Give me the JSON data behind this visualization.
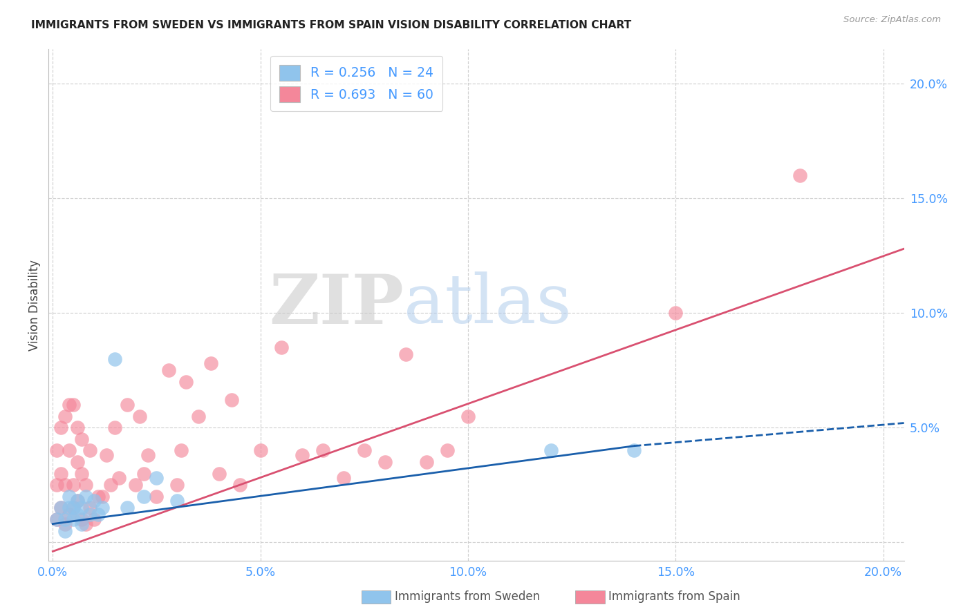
{
  "title": "IMMIGRANTS FROM SWEDEN VS IMMIGRANTS FROM SPAIN VISION DISABILITY CORRELATION CHART",
  "source": "Source: ZipAtlas.com",
  "ylabel": "Vision Disability",
  "xlim": [
    -0.001,
    0.205
  ],
  "ylim": [
    -0.008,
    0.215
  ],
  "x_ticks": [
    0.0,
    0.05,
    0.1,
    0.15,
    0.2
  ],
  "y_ticks": [
    0.0,
    0.05,
    0.1,
    0.15,
    0.2
  ],
  "x_tick_labels": [
    "0.0%",
    "5.0%",
    "10.0%",
    "15.0%",
    "20.0%"
  ],
  "y_tick_labels": [
    "",
    "5.0%",
    "10.0%",
    "15.0%",
    "20.0%"
  ],
  "sweden_color": "#90C4EC",
  "spain_color": "#F4879A",
  "sweden_line_color": "#1A5FAB",
  "spain_line_color": "#D95070",
  "sweden_R": 0.256,
  "sweden_N": 24,
  "spain_R": 0.693,
  "spain_N": 60,
  "legend_label_sweden": "Immigrants from Sweden",
  "legend_label_spain": "Immigrants from Spain",
  "tick_color": "#4499FF",
  "sweden_scatter_x": [
    0.001,
    0.002,
    0.003,
    0.003,
    0.004,
    0.004,
    0.005,
    0.005,
    0.006,
    0.006,
    0.007,
    0.007,
    0.008,
    0.009,
    0.01,
    0.011,
    0.012,
    0.015,
    0.018,
    0.022,
    0.025,
    0.03,
    0.12,
    0.14
  ],
  "sweden_scatter_y": [
    0.01,
    0.015,
    0.01,
    0.005,
    0.015,
    0.02,
    0.01,
    0.015,
    0.012,
    0.018,
    0.015,
    0.008,
    0.02,
    0.012,
    0.018,
    0.012,
    0.015,
    0.08,
    0.015,
    0.02,
    0.028,
    0.018,
    0.04,
    0.04
  ],
  "spain_scatter_x": [
    0.001,
    0.001,
    0.001,
    0.002,
    0.002,
    0.002,
    0.003,
    0.003,
    0.003,
    0.004,
    0.004,
    0.004,
    0.005,
    0.005,
    0.005,
    0.006,
    0.006,
    0.006,
    0.007,
    0.007,
    0.007,
    0.008,
    0.008,
    0.009,
    0.009,
    0.01,
    0.011,
    0.012,
    0.013,
    0.014,
    0.015,
    0.016,
    0.018,
    0.02,
    0.021,
    0.022,
    0.023,
    0.025,
    0.028,
    0.03,
    0.031,
    0.032,
    0.035,
    0.038,
    0.04,
    0.043,
    0.045,
    0.05,
    0.055,
    0.06,
    0.065,
    0.07,
    0.075,
    0.08,
    0.085,
    0.09,
    0.095,
    0.1,
    0.15,
    0.18
  ],
  "spain_scatter_y": [
    0.01,
    0.025,
    0.04,
    0.015,
    0.03,
    0.05,
    0.008,
    0.025,
    0.055,
    0.012,
    0.04,
    0.06,
    0.015,
    0.025,
    0.06,
    0.018,
    0.035,
    0.05,
    0.01,
    0.03,
    0.045,
    0.008,
    0.025,
    0.015,
    0.04,
    0.01,
    0.02,
    0.02,
    0.038,
    0.025,
    0.05,
    0.028,
    0.06,
    0.025,
    0.055,
    0.03,
    0.038,
    0.02,
    0.075,
    0.025,
    0.04,
    0.07,
    0.055,
    0.078,
    0.03,
    0.062,
    0.025,
    0.04,
    0.085,
    0.038,
    0.04,
    0.028,
    0.04,
    0.035,
    0.082,
    0.035,
    0.04,
    0.055,
    0.1,
    0.16
  ],
  "spain_line_start_x": 0.0,
  "spain_line_start_y": -0.004,
  "spain_line_end_x": 0.205,
  "spain_line_end_y": 0.128,
  "sweden_line_start_x": 0.0,
  "sweden_line_start_y": 0.008,
  "sweden_line_solid_end_x": 0.14,
  "sweden_line_solid_end_y": 0.042,
  "sweden_line_dash_end_x": 0.205,
  "sweden_line_dash_end_y": 0.052
}
